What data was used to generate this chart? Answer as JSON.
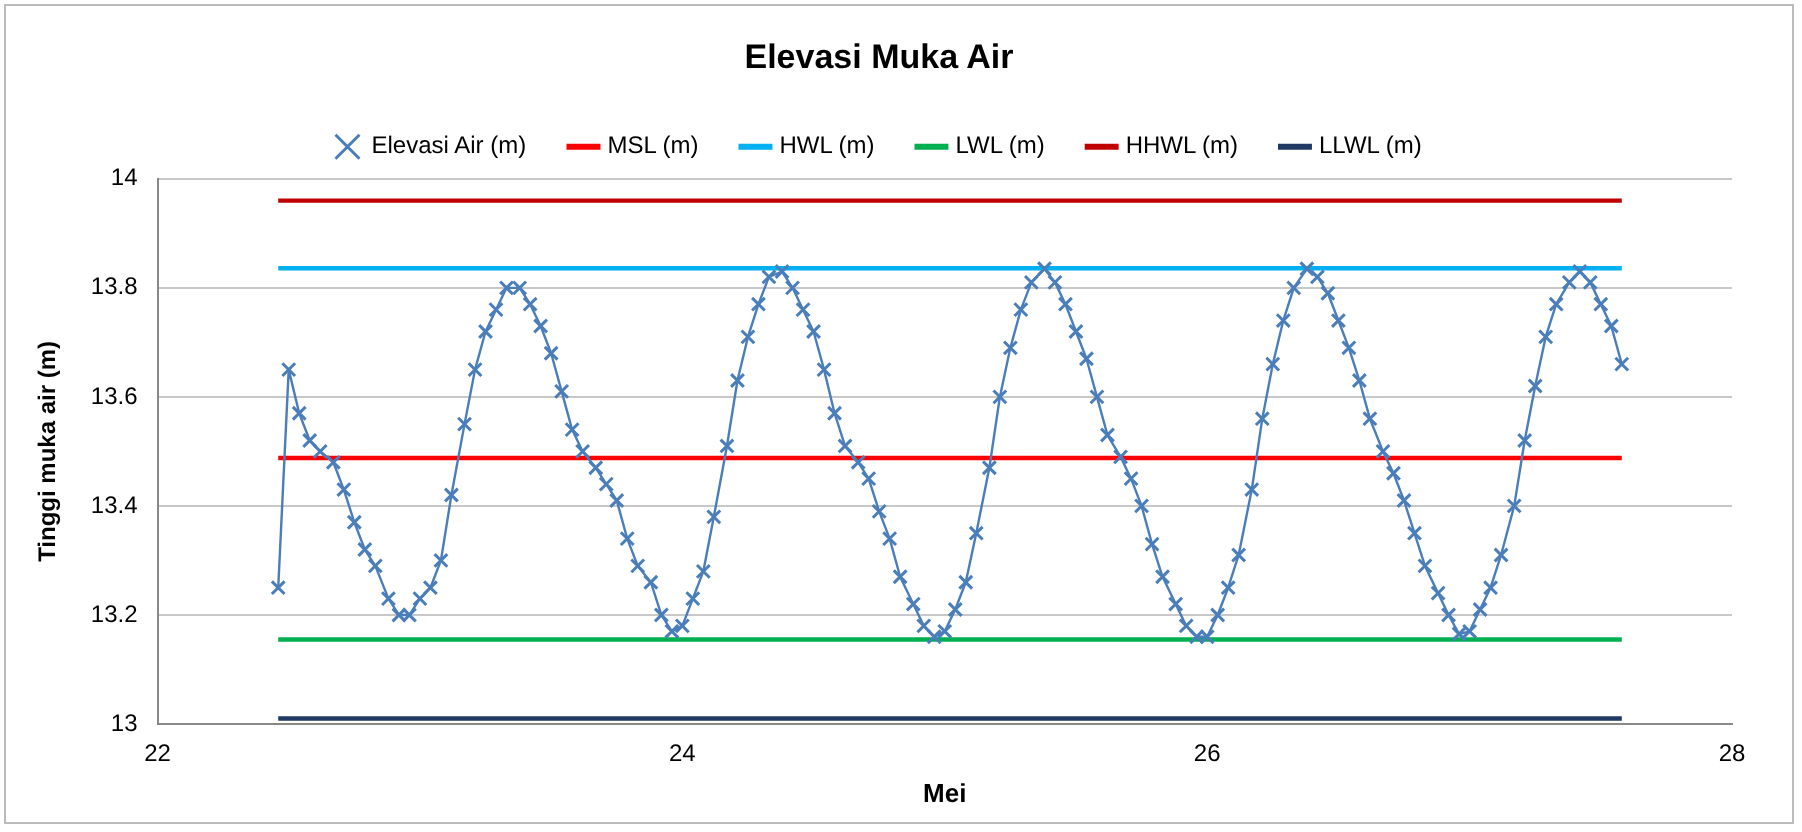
{
  "chart_data": {
    "type": "line",
    "title": "Elevasi Muka Air",
    "xlabel": "Mei",
    "ylabel": "Tinggi muka air (m)",
    "xlim": [
      22,
      28
    ],
    "xticks": [
      22,
      24,
      26,
      28
    ],
    "ylim": [
      13,
      14
    ],
    "yticks": [
      13,
      13.2,
      13.4,
      13.6,
      13.8,
      14
    ],
    "grid": "y",
    "legend": "top",
    "line_style": "solid",
    "series": [
      {
        "name": "Elevasi Air (m)",
        "color": "#4a7ebb",
        "marker": "cross",
        "x": [
          22.46,
          22.5,
          22.54,
          22.58,
          22.62,
          22.67,
          22.71,
          22.75,
          22.79,
          22.83,
          22.88,
          22.92,
          22.96,
          23.0,
          23.04,
          23.08,
          23.12,
          23.17,
          23.21,
          23.25,
          23.29,
          23.33,
          23.38,
          23.42,
          23.46,
          23.5,
          23.54,
          23.58,
          23.62,
          23.67,
          23.71,
          23.75,
          23.79,
          23.83,
          23.88,
          23.92,
          23.96,
          24.0,
          24.04,
          24.08,
          24.12,
          24.17,
          24.21,
          24.25,
          24.29,
          24.33,
          24.38,
          24.42,
          24.46,
          24.5,
          24.54,
          24.58,
          24.62,
          24.67,
          24.71,
          24.75,
          24.79,
          24.83,
          24.88,
          24.92,
          24.96,
          25.0,
          25.04,
          25.08,
          25.12,
          25.17,
          25.21,
          25.25,
          25.29,
          25.33,
          25.38,
          25.42,
          25.46,
          25.5,
          25.54,
          25.58,
          25.62,
          25.67,
          25.71,
          25.75,
          25.79,
          25.83,
          25.88,
          25.92,
          25.96,
          26.0,
          26.04,
          26.08,
          26.12,
          26.17,
          26.21,
          26.25,
          26.29,
          26.33,
          26.38,
          26.42,
          26.46,
          26.5,
          26.54,
          26.58,
          26.62,
          26.67,
          26.71,
          26.75,
          26.79,
          26.83,
          26.88,
          26.92,
          26.96,
          27.0,
          27.04,
          27.08,
          27.12,
          27.17,
          27.21,
          27.25,
          27.29,
          27.33,
          27.38,
          27.42,
          27.46,
          27.5,
          27.54,
          27.58
        ],
        "values": [
          13.25,
          13.65,
          13.57,
          13.52,
          13.5,
          13.48,
          13.43,
          13.37,
          13.32,
          13.29,
          13.23,
          13.2,
          13.2,
          13.23,
          13.25,
          13.3,
          13.42,
          13.55,
          13.65,
          13.72,
          13.76,
          13.8,
          13.8,
          13.77,
          13.73,
          13.68,
          13.61,
          13.54,
          13.5,
          13.47,
          13.44,
          13.41,
          13.34,
          13.29,
          13.26,
          13.2,
          13.17,
          13.18,
          13.23,
          13.28,
          13.38,
          13.51,
          13.63,
          13.71,
          13.77,
          13.82,
          13.83,
          13.8,
          13.76,
          13.72,
          13.65,
          13.57,
          13.51,
          13.48,
          13.45,
          13.39,
          13.34,
          13.27,
          13.22,
          13.18,
          13.16,
          13.17,
          13.21,
          13.26,
          13.35,
          13.47,
          13.6,
          13.69,
          13.76,
          13.81,
          13.835,
          13.81,
          13.77,
          13.72,
          13.67,
          13.6,
          13.53,
          13.49,
          13.45,
          13.4,
          13.33,
          13.27,
          13.22,
          13.18,
          13.16,
          13.16,
          13.2,
          13.25,
          13.31,
          13.43,
          13.56,
          13.66,
          13.74,
          13.8,
          13.835,
          13.82,
          13.79,
          13.74,
          13.69,
          13.63,
          13.56,
          13.5,
          13.46,
          13.41,
          13.35,
          13.29,
          13.24,
          13.2,
          13.165,
          13.17,
          13.21,
          13.25,
          13.31,
          13.4,
          13.52,
          13.62,
          13.71,
          13.77,
          13.81,
          13.83,
          13.81,
          13.77,
          13.73,
          13.66
        ]
      },
      {
        "name": "MSL (m)",
        "color": "#ff0000",
        "marker": "none",
        "x": [
          22.46,
          27.58
        ],
        "values": [
          13.488,
          13.488
        ]
      },
      {
        "name": "HWL (m)",
        "color": "#00b0f0",
        "marker": "none",
        "x": [
          22.46,
          27.58
        ],
        "values": [
          13.836,
          13.836
        ]
      },
      {
        "name": "LWL (m)",
        "color": "#00b050",
        "marker": "none",
        "x": [
          22.46,
          27.58
        ],
        "values": [
          13.155,
          13.155
        ]
      },
      {
        "name": "HHWL (m)",
        "color": "#c00000",
        "marker": "none",
        "x": [
          22.46,
          27.58
        ],
        "values": [
          13.96,
          13.96
        ]
      },
      {
        "name": "LLWL (m)",
        "color": "#1f3864",
        "marker": "none",
        "x": [
          22.46,
          27.58
        ],
        "values": [
          13.01,
          13.01
        ]
      }
    ]
  }
}
